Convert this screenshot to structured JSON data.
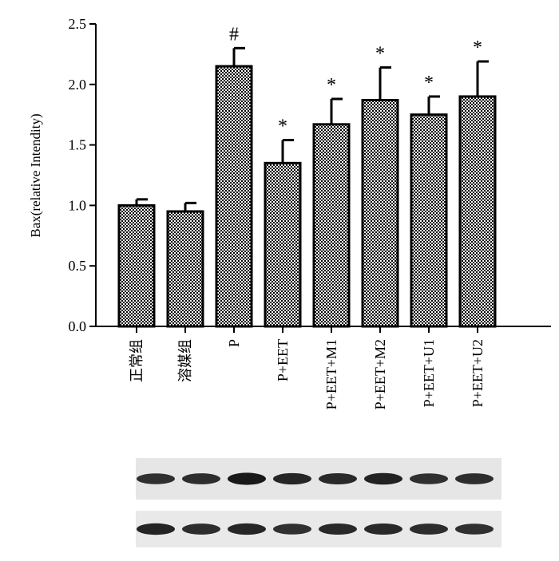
{
  "chart_data": {
    "type": "bar",
    "ylabel": "Bax(relative Intendity)",
    "ylim": [
      0,
      2.5
    ],
    "yticks": [
      "0.0",
      "0.5",
      "1.0",
      "1.5",
      "2.0",
      "2.5"
    ],
    "categories": [
      "正常组",
      "溶媒组",
      "P",
      "P+EET",
      "P+EET+M1",
      "P+EET+M2",
      "P+EET+U1",
      "P+EET+U2"
    ],
    "values": [
      1.0,
      0.95,
      2.15,
      1.35,
      1.67,
      1.87,
      1.75,
      1.9
    ],
    "errors": [
      0.05,
      0.07,
      0.15,
      0.19,
      0.21,
      0.27,
      0.15,
      0.29
    ],
    "markers": [
      "",
      "",
      "#",
      "*",
      "*",
      "*",
      "*",
      "*"
    ],
    "bar_fill": "checkered black/white",
    "grid": false,
    "legend": "none"
  },
  "blots": {
    "rows": 2,
    "lanes": 8,
    "band_intensity_row1": [
      0.7,
      0.72,
      0.9,
      0.78,
      0.75,
      0.82,
      0.68,
      0.72
    ],
    "band_intensity_row2": [
      0.8,
      0.72,
      0.78,
      0.7,
      0.75,
      0.75,
      0.72,
      0.7
    ]
  }
}
